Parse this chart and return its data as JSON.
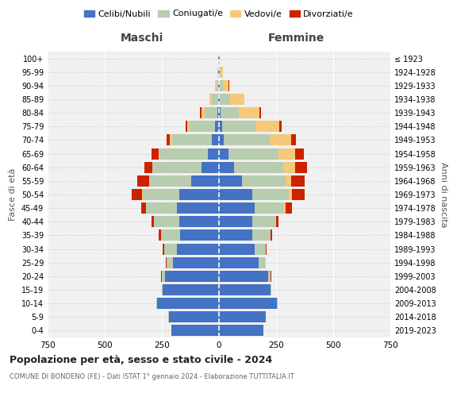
{
  "age_groups": [
    "0-4",
    "5-9",
    "10-14",
    "15-19",
    "20-24",
    "25-29",
    "30-34",
    "35-39",
    "40-44",
    "45-49",
    "50-54",
    "55-59",
    "60-64",
    "65-69",
    "70-74",
    "75-79",
    "80-84",
    "85-89",
    "90-94",
    "95-99",
    "100+"
  ],
  "birth_years": [
    "2019-2023",
    "2014-2018",
    "2009-2013",
    "2004-2008",
    "1999-2003",
    "1994-1998",
    "1989-1993",
    "1984-1988",
    "1979-1983",
    "1974-1978",
    "1969-1973",
    "1964-1968",
    "1959-1963",
    "1954-1958",
    "1949-1953",
    "1944-1948",
    "1939-1943",
    "1934-1938",
    "1929-1933",
    "1924-1928",
    "≤ 1923"
  ],
  "male": {
    "celibi": [
      210,
      220,
      270,
      245,
      235,
      200,
      185,
      170,
      175,
      185,
      175,
      120,
      75,
      50,
      30,
      18,
      8,
      5,
      3,
      2,
      2
    ],
    "coniugati": [
      0,
      1,
      3,
      5,
      15,
      30,
      55,
      85,
      110,
      135,
      160,
      185,
      215,
      210,
      175,
      110,
      55,
      25,
      8,
      3,
      1
    ],
    "vedovi": [
      0,
      0,
      0,
      0,
      1,
      0,
      0,
      0,
      1,
      1,
      2,
      2,
      3,
      5,
      10,
      10,
      15,
      10,
      5,
      2,
      0
    ],
    "divorziati": [
      0,
      0,
      0,
      0,
      1,
      3,
      5,
      8,
      10,
      18,
      45,
      50,
      35,
      30,
      15,
      8,
      5,
      2,
      1,
      0,
      0
    ]
  },
  "female": {
    "nubili": [
      195,
      205,
      255,
      225,
      215,
      175,
      155,
      145,
      145,
      155,
      145,
      100,
      65,
      40,
      22,
      15,
      8,
      5,
      3,
      2,
      2
    ],
    "coniugate": [
      0,
      1,
      2,
      4,
      12,
      28,
      50,
      80,
      100,
      130,
      160,
      190,
      215,
      220,
      200,
      145,
      80,
      45,
      15,
      5,
      1
    ],
    "vedove": [
      0,
      0,
      0,
      0,
      0,
      1,
      1,
      2,
      5,
      8,
      15,
      25,
      55,
      75,
      95,
      105,
      90,
      60,
      25,
      10,
      0
    ],
    "divorziate": [
      0,
      0,
      0,
      0,
      1,
      1,
      3,
      6,
      10,
      25,
      55,
      60,
      50,
      35,
      20,
      10,
      5,
      2,
      1,
      0,
      0
    ]
  },
  "colors": {
    "celibi": "#4472C4",
    "coniugati": "#B8CCB0",
    "vedovi": "#F5C97A",
    "divorziati": "#CC2200"
  },
  "title": "Popolazione per età, sesso e stato civile - 2024",
  "subtitle": "COMUNE DI BONDENO (FE) - Dati ISTAT 1° gennaio 2024 - Elaborazione TUTTITALIA.IT",
  "xlabel_left": "Maschi",
  "xlabel_right": "Femmine",
  "ylabel_left": "Fasce di età",
  "ylabel_right": "Anni di nascita",
  "xlim": 750,
  "legend_labels": [
    "Celibi/Nubili",
    "Coniugati/e",
    "Vedovi/e",
    "Divorziati/e"
  ],
  "background_color": "#FFFFFF",
  "plot_bg_color": "#F0F0F0",
  "grid_color": "#CCCCCC"
}
